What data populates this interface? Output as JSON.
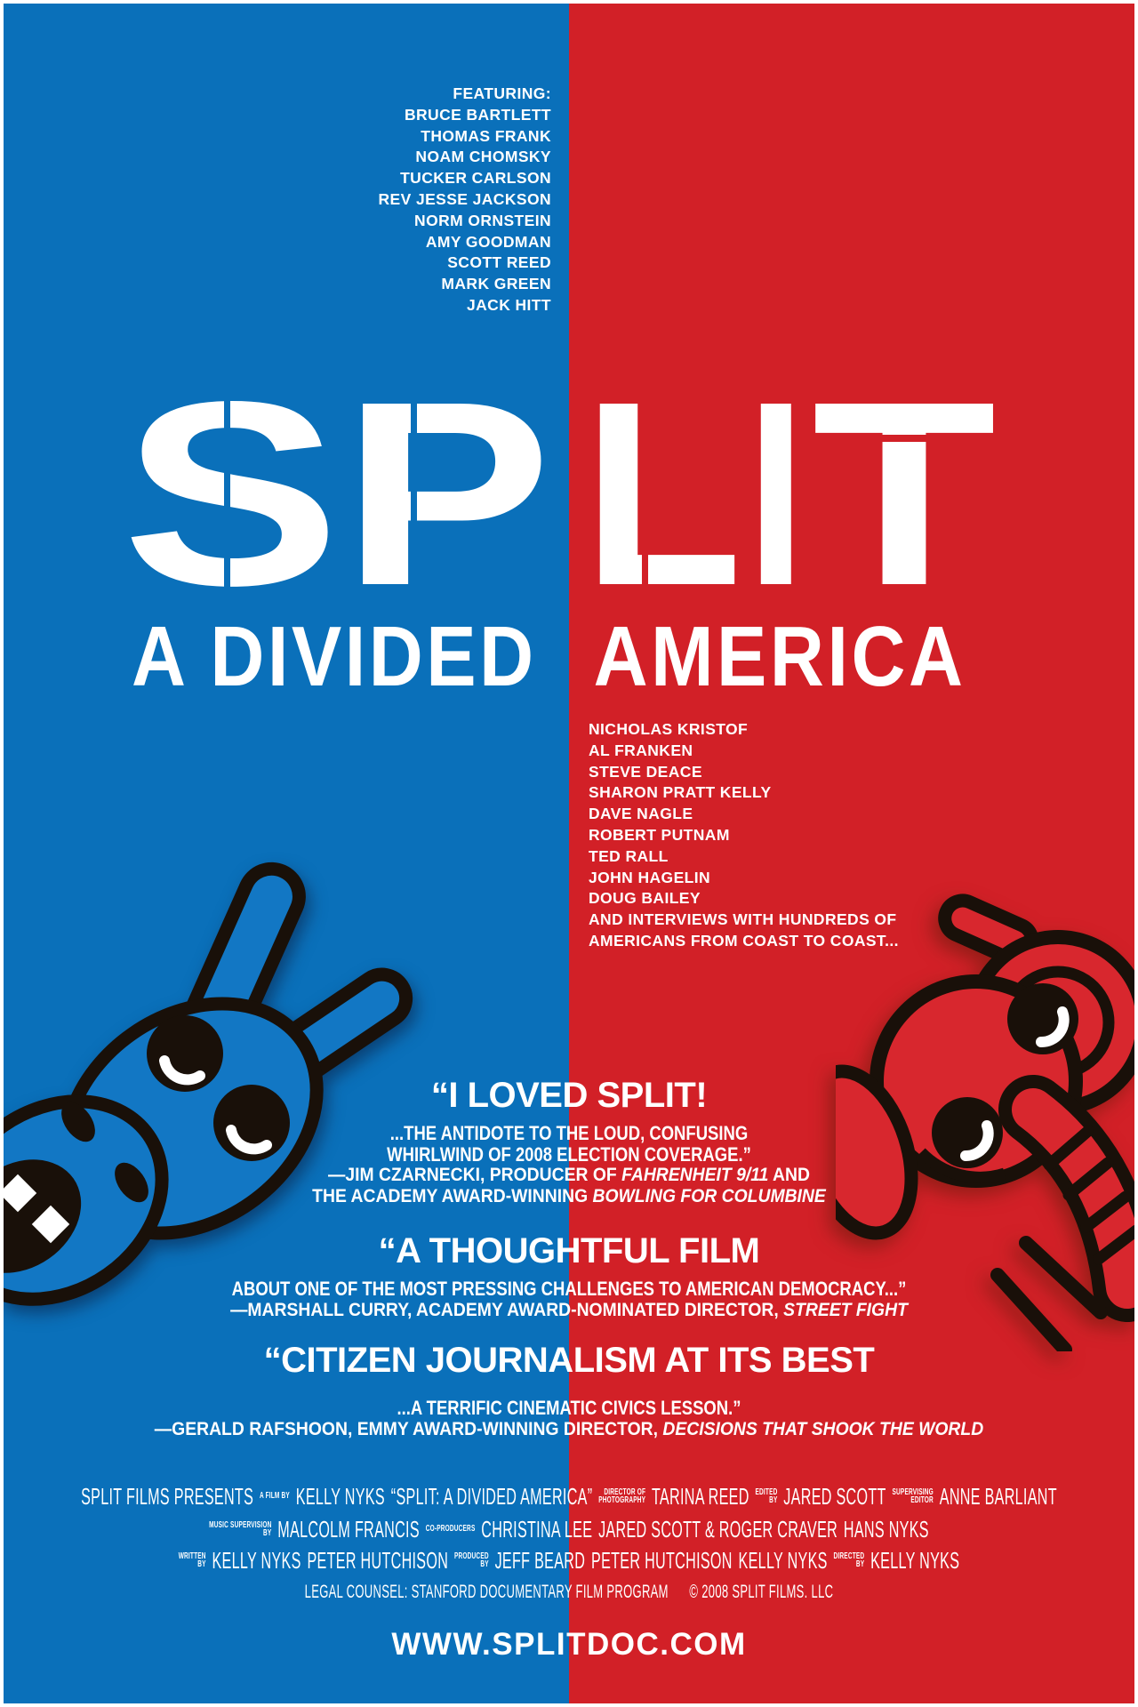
{
  "colors": {
    "background_blue": "#0a70ba",
    "background_red": "#d22027",
    "donkey_blue": "#1277c4",
    "elephant_red": "#d8272e",
    "outline_black": "#191009",
    "text_white": "#ffffff"
  },
  "featuring": {
    "heading": "FEATURING:",
    "names": [
      "BRUCE BARTLETT",
      "THOMAS FRANK",
      "NOAM CHOMSKY",
      "TUCKER CARLSON",
      "REV JESSE JACKSON",
      "NORM ORNSTEIN",
      "AMY GOODMAN",
      "SCOTT REED",
      "MARK GREEN",
      "JACK HITT"
    ]
  },
  "title": {
    "word": "SPLIT",
    "letters": [
      "S",
      "P",
      "L",
      "I",
      "T"
    ],
    "subtitle_left": "A DIVIDED",
    "subtitle_right": "AMERICA"
  },
  "also_featuring": {
    "names": [
      "NICHOLAS KRISTOF",
      "AL FRANKEN",
      "STEVE DEACE",
      "SHARON PRATT KELLY",
      "DAVE NAGLE",
      "ROBERT PUTNAM",
      "TED RALL",
      "JOHN HAGELIN",
      "DOUG BAILEY"
    ],
    "closing": [
      "AND INTERVIEWS WITH HUNDREDS OF",
      "AMERICANS FROM COAST TO COAST..."
    ]
  },
  "quotes": [
    {
      "headline": "“I LOVED SPLIT!",
      "body": [
        "...THE ANTIDOTE TO THE LOUD, CONFUSING",
        "WHIRLWIND OF 2008 ELECTION COVERAGE.”"
      ],
      "attribution": [
        {
          "segments": [
            {
              "t": "—JIM CZARNECKI, PRODUCER OF "
            },
            {
              "t": "FAHRENHEIT 9/11",
              "i": true
            },
            {
              "t": " AND"
            }
          ]
        },
        {
          "segments": [
            {
              "t": "THE ACADEMY AWARD-WINNING "
            },
            {
              "t": "BOWLING FOR COLUMBINE",
              "i": true
            }
          ]
        }
      ]
    },
    {
      "headline": "“A THOUGHTFUL FILM",
      "body": [
        "ABOUT ONE OF THE MOST PRESSING CHALLENGES TO AMERICAN DEMOCRACY...”"
      ],
      "attribution": [
        {
          "segments": [
            {
              "t": "—MARSHALL CURRY, ACADEMY AWARD-NOMINATED DIRECTOR, "
            },
            {
              "t": "STREET FIGHT",
              "i": true
            }
          ]
        }
      ]
    },
    {
      "headline": "“CITIZEN JOURNALISM AT ITS BEST",
      "body": [
        "...A TERRIFIC CINEMATIC CIVICS LESSON.”"
      ],
      "attribution": [
        {
          "segments": [
            {
              "t": "—GERALD RAFSHOON, EMMY AWARD-WINNING DIRECTOR, "
            },
            {
              "t": "DECISIONS THAT SHOOK THE WORLD",
              "i": true
            }
          ]
        }
      ]
    }
  ],
  "credits": {
    "rows": [
      {
        "items": [
          {
            "k": "name",
            "t": "SPLIT FILMS PRESENTS"
          },
          {
            "k": "label",
            "t": "A FILM BY"
          },
          {
            "k": "name",
            "t": "KELLY NYKS"
          },
          {
            "k": "title",
            "t": "“SPLIT: A DIVIDED AMERICA”"
          },
          {
            "k": "label",
            "t": "DIRECTOR OF|PHOTOGRAPHY"
          },
          {
            "k": "name",
            "t": "TARINA REED"
          },
          {
            "k": "label",
            "t": "EDITED|BY"
          },
          {
            "k": "name",
            "t": "JARED SCOTT"
          },
          {
            "k": "label",
            "t": "SUPERVISING|EDITOR"
          },
          {
            "k": "name",
            "t": "ANNE BARLIANT"
          }
        ]
      },
      {
        "items": [
          {
            "k": "label",
            "t": "MUSIC SUPERVISION|BY"
          },
          {
            "k": "name",
            "t": "MALCOLM FRANCIS"
          },
          {
            "k": "label",
            "t": "CO-PRODUCERS"
          },
          {
            "k": "name",
            "t": "CHRISTINA LEE"
          },
          {
            "k": "name",
            "t": "JARED SCOTT & ROGER CRAVER"
          },
          {
            "k": "name",
            "t": "HANS NYKS"
          }
        ]
      },
      {
        "items": [
          {
            "k": "label",
            "t": "WRITTEN|BY"
          },
          {
            "k": "name",
            "t": "KELLY NYKS"
          },
          {
            "k": "name",
            "t": "PETER HUTCHISON"
          },
          {
            "k": "label",
            "t": "PRODUCED|BY"
          },
          {
            "k": "name",
            "t": "JEFF BEARD"
          },
          {
            "k": "name",
            "t": "PETER HUTCHISON"
          },
          {
            "k": "name",
            "t": "KELLY NYKS"
          },
          {
            "k": "label",
            "t": "DIRECTED|BY"
          },
          {
            "k": "name",
            "t": "KELLY NYKS"
          }
        ]
      }
    ],
    "legal": "LEGAL COUNSEL: STANFORD DOCUMENTARY FILM PROGRAM",
    "copyright": "© 2008 SPLIT FILMS. LLC",
    "website": "WWW.SPLITDOC.COM"
  },
  "mascots": {
    "left_icon": "democratic-donkey-icon",
    "right_icon": "republican-elephant-icon"
  }
}
